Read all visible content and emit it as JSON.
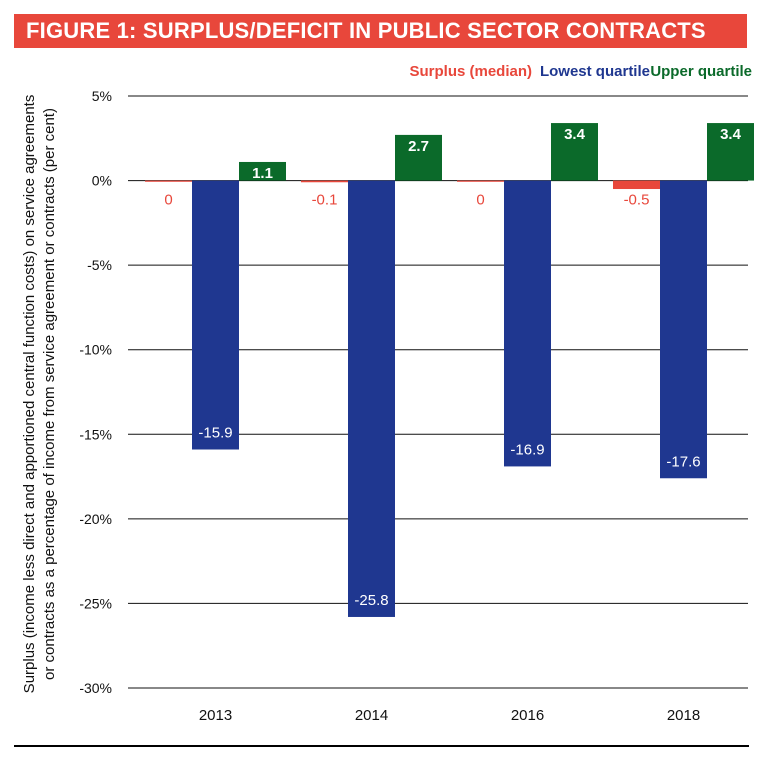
{
  "title": "FIGURE 1: SURPLUS/DEFICIT IN PUBLIC SECTOR CONTRACTS",
  "colors": {
    "title_bg": "#e8473b",
    "surplus": "#e8473b",
    "lowest": "#1f3790",
    "upper": "#0b6a2a"
  },
  "chart_data": {
    "type": "bar",
    "categories": [
      "2013",
      "2014",
      "2016",
      "2018"
    ],
    "series": [
      {
        "name": "Surplus (median)",
        "values": [
          0,
          -0.1,
          0,
          -0.5
        ],
        "labels": [
          "0",
          "-0.1",
          "0",
          "-0.5"
        ]
      },
      {
        "name": "Lowest quartile",
        "values": [
          -15.9,
          -25.8,
          -16.9,
          -17.6
        ],
        "labels": [
          "-15.9",
          "-25.8",
          "-16.9",
          "-17.6"
        ]
      },
      {
        "name": "Upper quartile",
        "values": [
          1.1,
          2.7,
          3.4,
          3.4
        ],
        "labels": [
          "1.1",
          "2.7",
          "3.4",
          "3.4"
        ]
      }
    ],
    "ylabel": "Surplus (income less direct and apportioned central function costs) on service agreements or contracts as a percentage of income from service agreement or contracts (per cent)",
    "ylim": [
      -30,
      5
    ],
    "yticks": [
      5,
      0,
      -5,
      -10,
      -15,
      -20,
      -25,
      -30
    ],
    "ytick_labels": [
      "5%",
      "0%",
      "-5%",
      "-10%",
      "-15%",
      "-20%",
      "-25%",
      "-30%"
    ],
    "grid": true,
    "legend_position": "top-right"
  }
}
